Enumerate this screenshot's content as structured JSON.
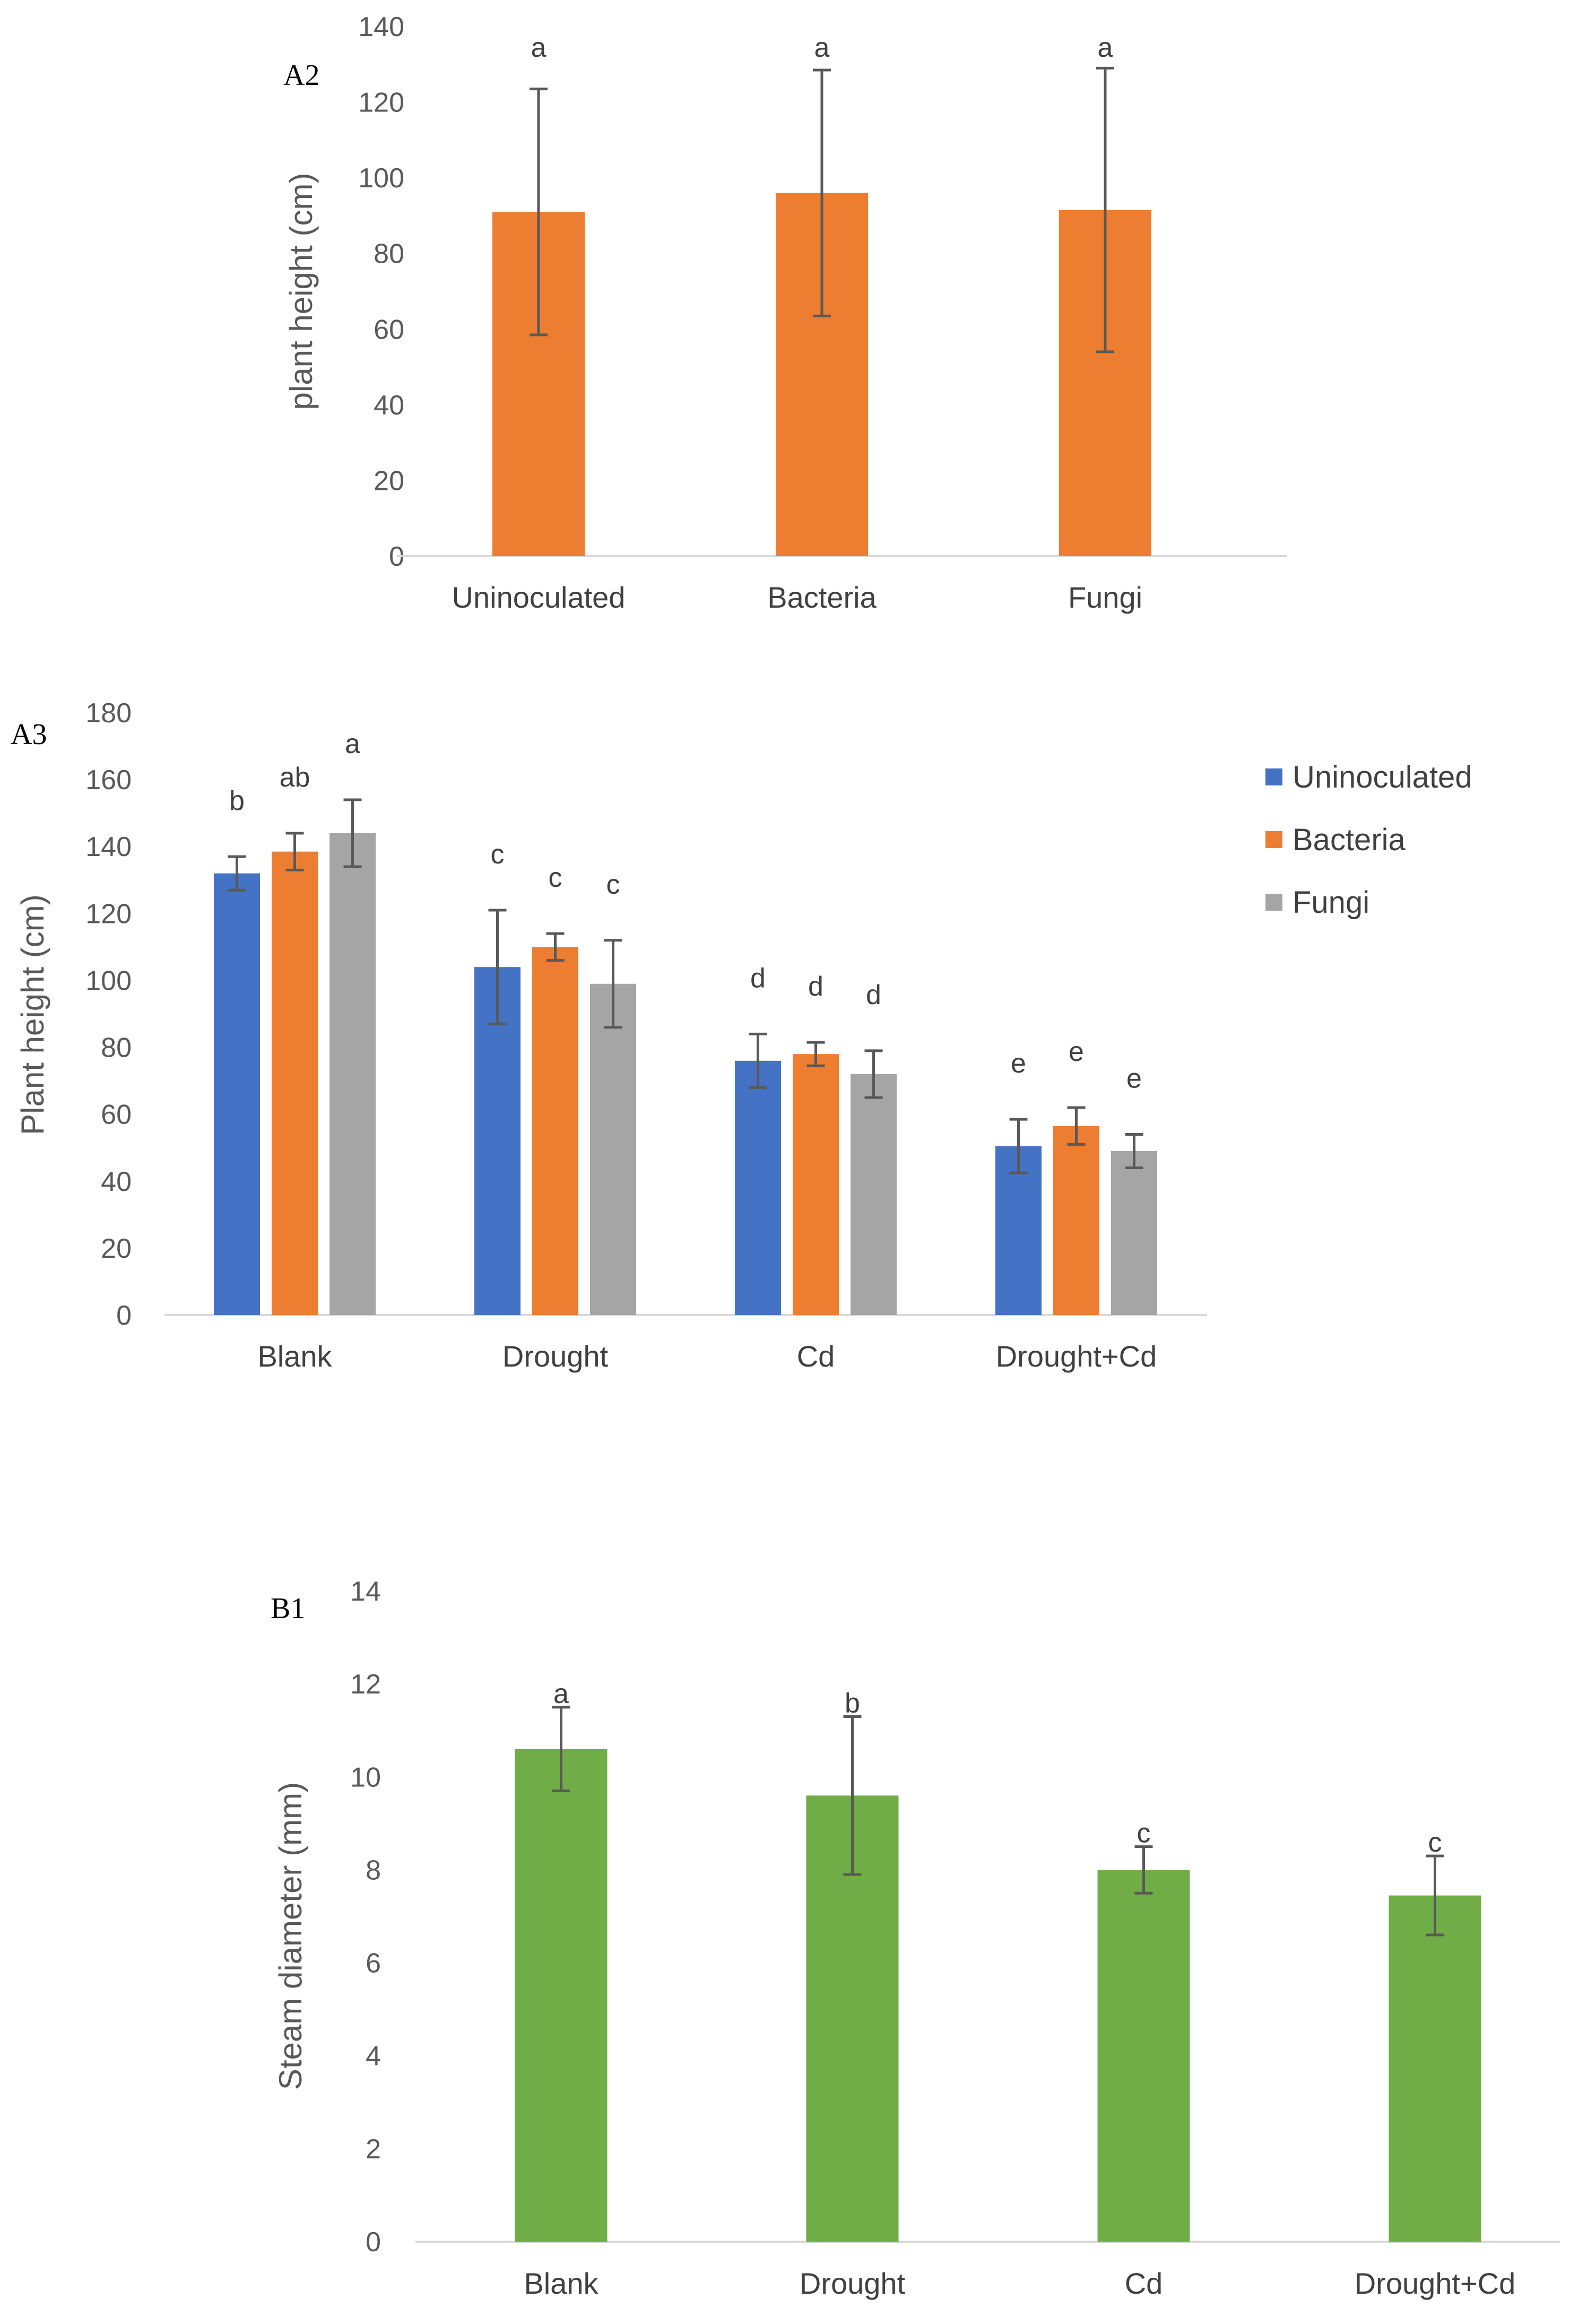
{
  "chart_data": [
    {
      "panel": "A2",
      "type": "bar",
      "ylabel": "plant height (cm)",
      "xlabel": "",
      "ylim": [
        0,
        140
      ],
      "yticks": [
        "0",
        "20",
        "40",
        "60",
        "80",
        "100",
        "120",
        "140"
      ],
      "categories": [
        "Uninoculated",
        "Bacteria",
        "Fungi"
      ],
      "series": [
        {
          "name": "",
          "color": "#ED7D31",
          "values": [
            91,
            96,
            91.5
          ],
          "errors": [
            32.5,
            32.5,
            37.5
          ],
          "labels": [
            "a",
            "a",
            "a"
          ]
        }
      ]
    },
    {
      "panel": "A3",
      "type": "bar",
      "ylabel": "Plant height (cm)",
      "xlabel": "",
      "ylim": [
        0,
        180
      ],
      "yticks": [
        "0",
        "20",
        "40",
        "60",
        "80",
        "100",
        "120",
        "140",
        "160",
        "180"
      ],
      "categories": [
        "Blank",
        "Drought",
        "Cd",
        "Drought+Cd"
      ],
      "legend": "right",
      "series": [
        {
          "name": "Uninoculated",
          "color": "#4472C4",
          "values": [
            132,
            104,
            76,
            50.5
          ],
          "errors": [
            5,
            17,
            8,
            8
          ],
          "labels": [
            "b",
            "c",
            "d",
            "e"
          ]
        },
        {
          "name": "Bacteria",
          "color": "#ED7D31",
          "values": [
            138.5,
            110,
            78,
            56.5
          ],
          "errors": [
            5.5,
            4,
            3.5,
            5.5
          ],
          "labels": [
            "ab",
            "c",
            "d",
            "e"
          ]
        },
        {
          "name": "Fungi",
          "color": "#A5A5A5",
          "values": [
            144,
            99,
            72,
            49
          ],
          "errors": [
            10,
            13,
            7,
            5
          ],
          "labels": [
            "a",
            "c",
            "d",
            "e"
          ]
        }
      ]
    },
    {
      "panel": "B1",
      "type": "bar",
      "ylabel": "Steam diameter (mm)",
      "xlabel": "",
      "ylim": [
        0,
        14
      ],
      "yticks": [
        "0",
        "2",
        "4",
        "6",
        "8",
        "10",
        "12",
        "14"
      ],
      "categories": [
        "Blank",
        "Drought",
        "Cd",
        "Drought+Cd"
      ],
      "series": [
        {
          "name": "",
          "color": "#70AD47",
          "values": [
            10.6,
            9.6,
            8.0,
            7.45
          ],
          "errors": [
            0.9,
            1.7,
            0.5,
            0.85
          ],
          "labels": [
            "a",
            "b",
            "c",
            "c"
          ]
        }
      ]
    }
  ]
}
